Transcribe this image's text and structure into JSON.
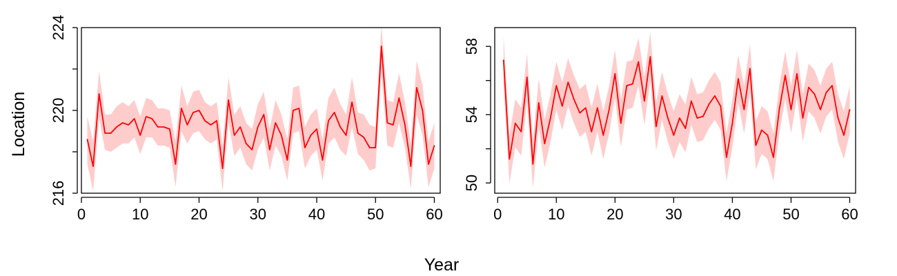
{
  "figure": {
    "xlabel": "Year",
    "ylabel": "Location"
  },
  "colors": {
    "line": "#ff0000",
    "band": "#ffcccc",
    "axis": "#000000"
  },
  "chart_data": [
    {
      "type": "line",
      "title": "",
      "xlabel": "Year",
      "ylabel": "Location",
      "xlim": [
        0,
        61
      ],
      "ylim": [
        216,
        224
      ],
      "xticks": [
        0,
        10,
        20,
        30,
        40,
        50,
        60
      ],
      "yticks": [
        216,
        220,
        224
      ],
      "grid": false,
      "x": [
        1,
        2,
        3,
        4,
        5,
        6,
        7,
        8,
        9,
        10,
        11,
        12,
        13,
        14,
        15,
        16,
        17,
        18,
        19,
        20,
        21,
        22,
        23,
        24,
        25,
        26,
        27,
        28,
        29,
        30,
        31,
        32,
        33,
        34,
        35,
        36,
        37,
        38,
        39,
        40,
        41,
        42,
        43,
        44,
        45,
        46,
        47,
        48,
        49,
        50,
        51,
        52,
        53,
        54,
        55,
        56,
        57,
        58,
        59,
        60
      ],
      "series": [
        {
          "values": [
            218.6,
            217.3,
            220.8,
            218.9,
            218.9,
            219.2,
            219.4,
            219.3,
            219.6,
            218.8,
            219.7,
            219.6,
            219.2,
            219.2,
            219.1,
            217.4,
            220.1,
            219.3,
            219.9,
            220.0,
            219.5,
            219.3,
            219.5,
            217.2,
            220.5,
            218.8,
            219.2,
            218.4,
            218.1,
            219.2,
            219.8,
            218.1,
            219.4,
            218.8,
            217.6,
            220.0,
            220.1,
            218.2,
            218.8,
            219.1,
            217.6,
            219.5,
            219.9,
            219.2,
            218.8,
            220.4,
            218.9,
            218.7,
            218.2,
            218.2,
            223.1,
            219.4,
            219.3,
            220.6,
            219.3,
            217.3,
            221.1,
            220.0,
            217.4,
            218.3
          ],
          "lower": [
            217.4,
            216.1,
            219.6,
            218.1,
            218.0,
            218.2,
            218.4,
            218.4,
            218.7,
            217.9,
            218.7,
            218.7,
            218.3,
            218.3,
            218.2,
            216.3,
            219.0,
            218.4,
            218.9,
            219.0,
            218.6,
            218.4,
            218.6,
            216.1,
            219.4,
            217.8,
            218.2,
            217.4,
            217.1,
            218.1,
            218.7,
            217.1,
            218.3,
            217.8,
            216.6,
            218.9,
            219.0,
            217.2,
            217.8,
            218.1,
            216.6,
            218.4,
            218.7,
            218.1,
            217.8,
            219.2,
            217.9,
            217.6,
            217.1,
            217.2,
            221.8,
            218.3,
            218.2,
            219.4,
            218.2,
            216.2,
            219.8,
            218.8,
            216.3,
            217.2
          ],
          "upper": [
            219.7,
            218.5,
            221.9,
            219.8,
            219.8,
            220.2,
            220.4,
            220.2,
            220.5,
            219.7,
            220.6,
            220.5,
            220.1,
            220.1,
            220.0,
            218.5,
            221.2,
            220.2,
            220.9,
            221.0,
            220.4,
            220.2,
            220.4,
            218.3,
            221.6,
            219.8,
            220.2,
            219.4,
            219.1,
            220.3,
            220.9,
            219.1,
            220.5,
            219.8,
            218.6,
            221.1,
            221.2,
            219.2,
            219.8,
            220.1,
            218.6,
            220.6,
            221.1,
            220.3,
            219.8,
            221.6,
            219.9,
            219.8,
            219.3,
            219.2,
            224.1,
            220.5,
            220.4,
            221.8,
            220.4,
            218.4,
            222.4,
            221.2,
            218.5,
            219.4
          ]
        }
      ]
    },
    {
      "type": "line",
      "title": "",
      "xlabel": "Year",
      "ylabel": "Location",
      "xlim": [
        -0.5,
        61
      ],
      "ylim": [
        49.4,
        59.1
      ],
      "xticks": [
        0,
        10,
        20,
        30,
        40,
        50,
        60
      ],
      "yticks": [
        50,
        54,
        58
      ],
      "grid": false,
      "x": [
        1,
        2,
        3,
        4,
        5,
        6,
        7,
        8,
        9,
        10,
        11,
        12,
        13,
        14,
        15,
        16,
        17,
        18,
        19,
        20,
        21,
        22,
        23,
        24,
        25,
        26,
        27,
        28,
        29,
        30,
        31,
        32,
        33,
        34,
        35,
        36,
        37,
        38,
        39,
        40,
        41,
        42,
        43,
        44,
        45,
        46,
        47,
        48,
        49,
        50,
        51,
        52,
        53,
        54,
        55,
        56,
        57,
        58,
        59,
        60
      ],
      "series": [
        {
          "values": [
            57.2,
            51.4,
            53.5,
            53.0,
            56.2,
            51.1,
            54.7,
            52.3,
            53.8,
            55.7,
            54.5,
            55.9,
            54.9,
            54.1,
            54.4,
            53.0,
            54.4,
            52.8,
            54.3,
            56.4,
            53.5,
            55.7,
            55.8,
            57.1,
            54.8,
            57.4,
            53.3,
            55.1,
            53.8,
            52.8,
            53.8,
            53.2,
            54.8,
            53.8,
            53.9,
            54.6,
            55.1,
            54.5,
            51.5,
            53.5,
            56.1,
            54.3,
            56.7,
            52.2,
            53.1,
            52.8,
            51.5,
            54.3,
            56.3,
            54.3,
            56.4,
            53.8,
            55.6,
            55.2,
            54.3,
            55.3,
            55.7,
            53.8,
            52.8,
            54.3
          ],
          "lower": [
            55.8,
            50.0,
            52.1,
            51.6,
            54.8,
            49.7,
            53.3,
            50.9,
            52.4,
            54.3,
            53.1,
            54.5,
            53.5,
            52.7,
            53.0,
            51.6,
            53.0,
            51.4,
            52.9,
            55.0,
            52.1,
            54.3,
            54.4,
            55.7,
            53.4,
            56.0,
            51.9,
            53.7,
            52.4,
            51.4,
            52.4,
            51.8,
            53.4,
            52.4,
            52.5,
            53.2,
            53.7,
            53.1,
            50.1,
            52.1,
            54.7,
            52.9,
            55.3,
            50.8,
            51.7,
            51.4,
            50.1,
            52.9,
            54.9,
            52.9,
            55.0,
            52.4,
            54.2,
            53.8,
            52.9,
            53.9,
            54.3,
            52.4,
            51.4,
            52.9
          ],
          "upper": [
            58.6,
            52.8,
            54.9,
            54.4,
            57.6,
            52.5,
            56.1,
            53.7,
            55.2,
            57.1,
            55.9,
            57.3,
            56.3,
            55.5,
            55.8,
            54.4,
            55.8,
            54.2,
            55.7,
            57.8,
            54.9,
            57.1,
            57.2,
            58.5,
            56.2,
            58.8,
            54.7,
            56.5,
            55.2,
            54.2,
            55.2,
            54.6,
            56.2,
            55.2,
            55.3,
            56.0,
            56.5,
            55.9,
            52.9,
            54.9,
            57.5,
            55.7,
            58.1,
            53.6,
            54.5,
            54.2,
            52.9,
            55.7,
            57.7,
            55.7,
            57.8,
            55.2,
            57.0,
            56.6,
            55.7,
            56.7,
            57.1,
            55.2,
            54.2,
            55.7
          ]
        }
      ]
    }
  ]
}
